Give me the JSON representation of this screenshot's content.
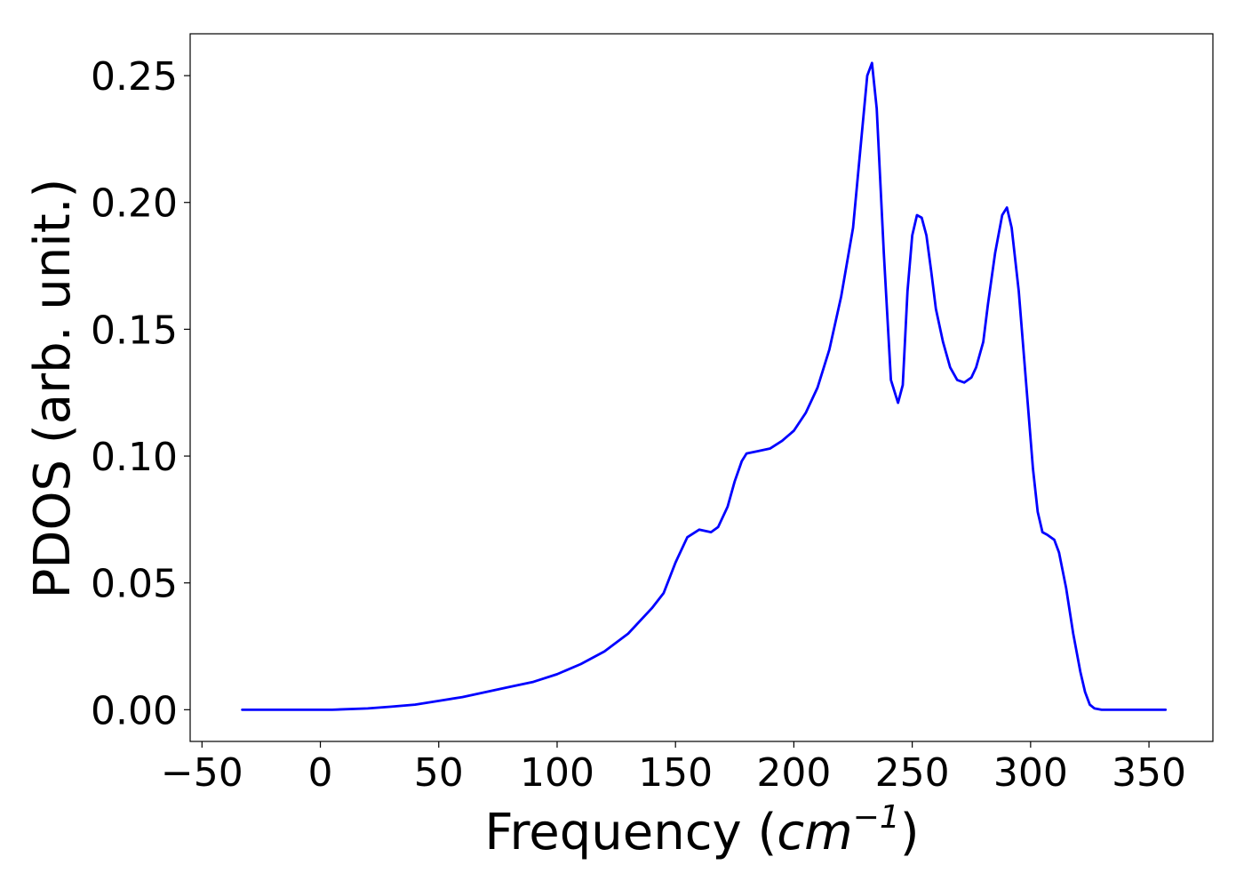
{
  "chart_data": {
    "type": "line",
    "title": "",
    "xlabel": "Frequency (",
    "xlabel_math_base": "cm",
    "xlabel_math_exp": "−1",
    "xlabel_close": ")",
    "ylabel": "PDOS (arb. unit.)",
    "xlim": [
      -55,
      377
    ],
    "ylim": [
      -0.0125,
      0.2665
    ],
    "xticks": [
      -50,
      0,
      50,
      100,
      150,
      200,
      250,
      300,
      350
    ],
    "xtick_labels": [
      "−50",
      "0",
      "50",
      "100",
      "150",
      "200",
      "250",
      "300",
      "350"
    ],
    "yticks": [
      0.0,
      0.05,
      0.1,
      0.15,
      0.2,
      0.25
    ],
    "ytick_labels": [
      "0.00",
      "0.05",
      "0.10",
      "0.15",
      "0.20",
      "0.25"
    ],
    "grid": false,
    "line_color": "#0000ff",
    "series": [
      {
        "x": [
          -33,
          0,
          5,
          20,
          30,
          40,
          50,
          60,
          70,
          80,
          90,
          100,
          110,
          120,
          130,
          140,
          145,
          150,
          155,
          160,
          165,
          168,
          172,
          175,
          178,
          180,
          185,
          190,
          195,
          200,
          205,
          210,
          215,
          220,
          225,
          228,
          231,
          233,
          235,
          238,
          241,
          244,
          246,
          248,
          250,
          252,
          254,
          256,
          258,
          260,
          263,
          266,
          269,
          272,
          275,
          277,
          280,
          282,
          285,
          288,
          290,
          292,
          295,
          298,
          301,
          303,
          305,
          307,
          310,
          312,
          315,
          318,
          321,
          323,
          325,
          327,
          330,
          333,
          340,
          357
        ],
        "y": [
          0.0,
          0.0,
          0.0,
          0.0005,
          0.0012,
          0.002,
          0.0035,
          0.005,
          0.007,
          0.009,
          0.011,
          0.014,
          0.018,
          0.023,
          0.03,
          0.04,
          0.046,
          0.058,
          0.068,
          0.071,
          0.07,
          0.072,
          0.08,
          0.09,
          0.098,
          0.101,
          0.102,
          0.103,
          0.106,
          0.11,
          0.117,
          0.127,
          0.142,
          0.163,
          0.19,
          0.22,
          0.25,
          0.255,
          0.237,
          0.18,
          0.13,
          0.121,
          0.128,
          0.165,
          0.187,
          0.195,
          0.194,
          0.187,
          0.173,
          0.158,
          0.145,
          0.135,
          0.13,
          0.129,
          0.131,
          0.135,
          0.145,
          0.16,
          0.18,
          0.195,
          0.198,
          0.19,
          0.165,
          0.13,
          0.095,
          0.078,
          0.07,
          0.069,
          0.067,
          0.062,
          0.048,
          0.03,
          0.015,
          0.007,
          0.002,
          0.0005,
          0.0,
          0.0,
          0.0,
          0.0
        ]
      }
    ]
  }
}
